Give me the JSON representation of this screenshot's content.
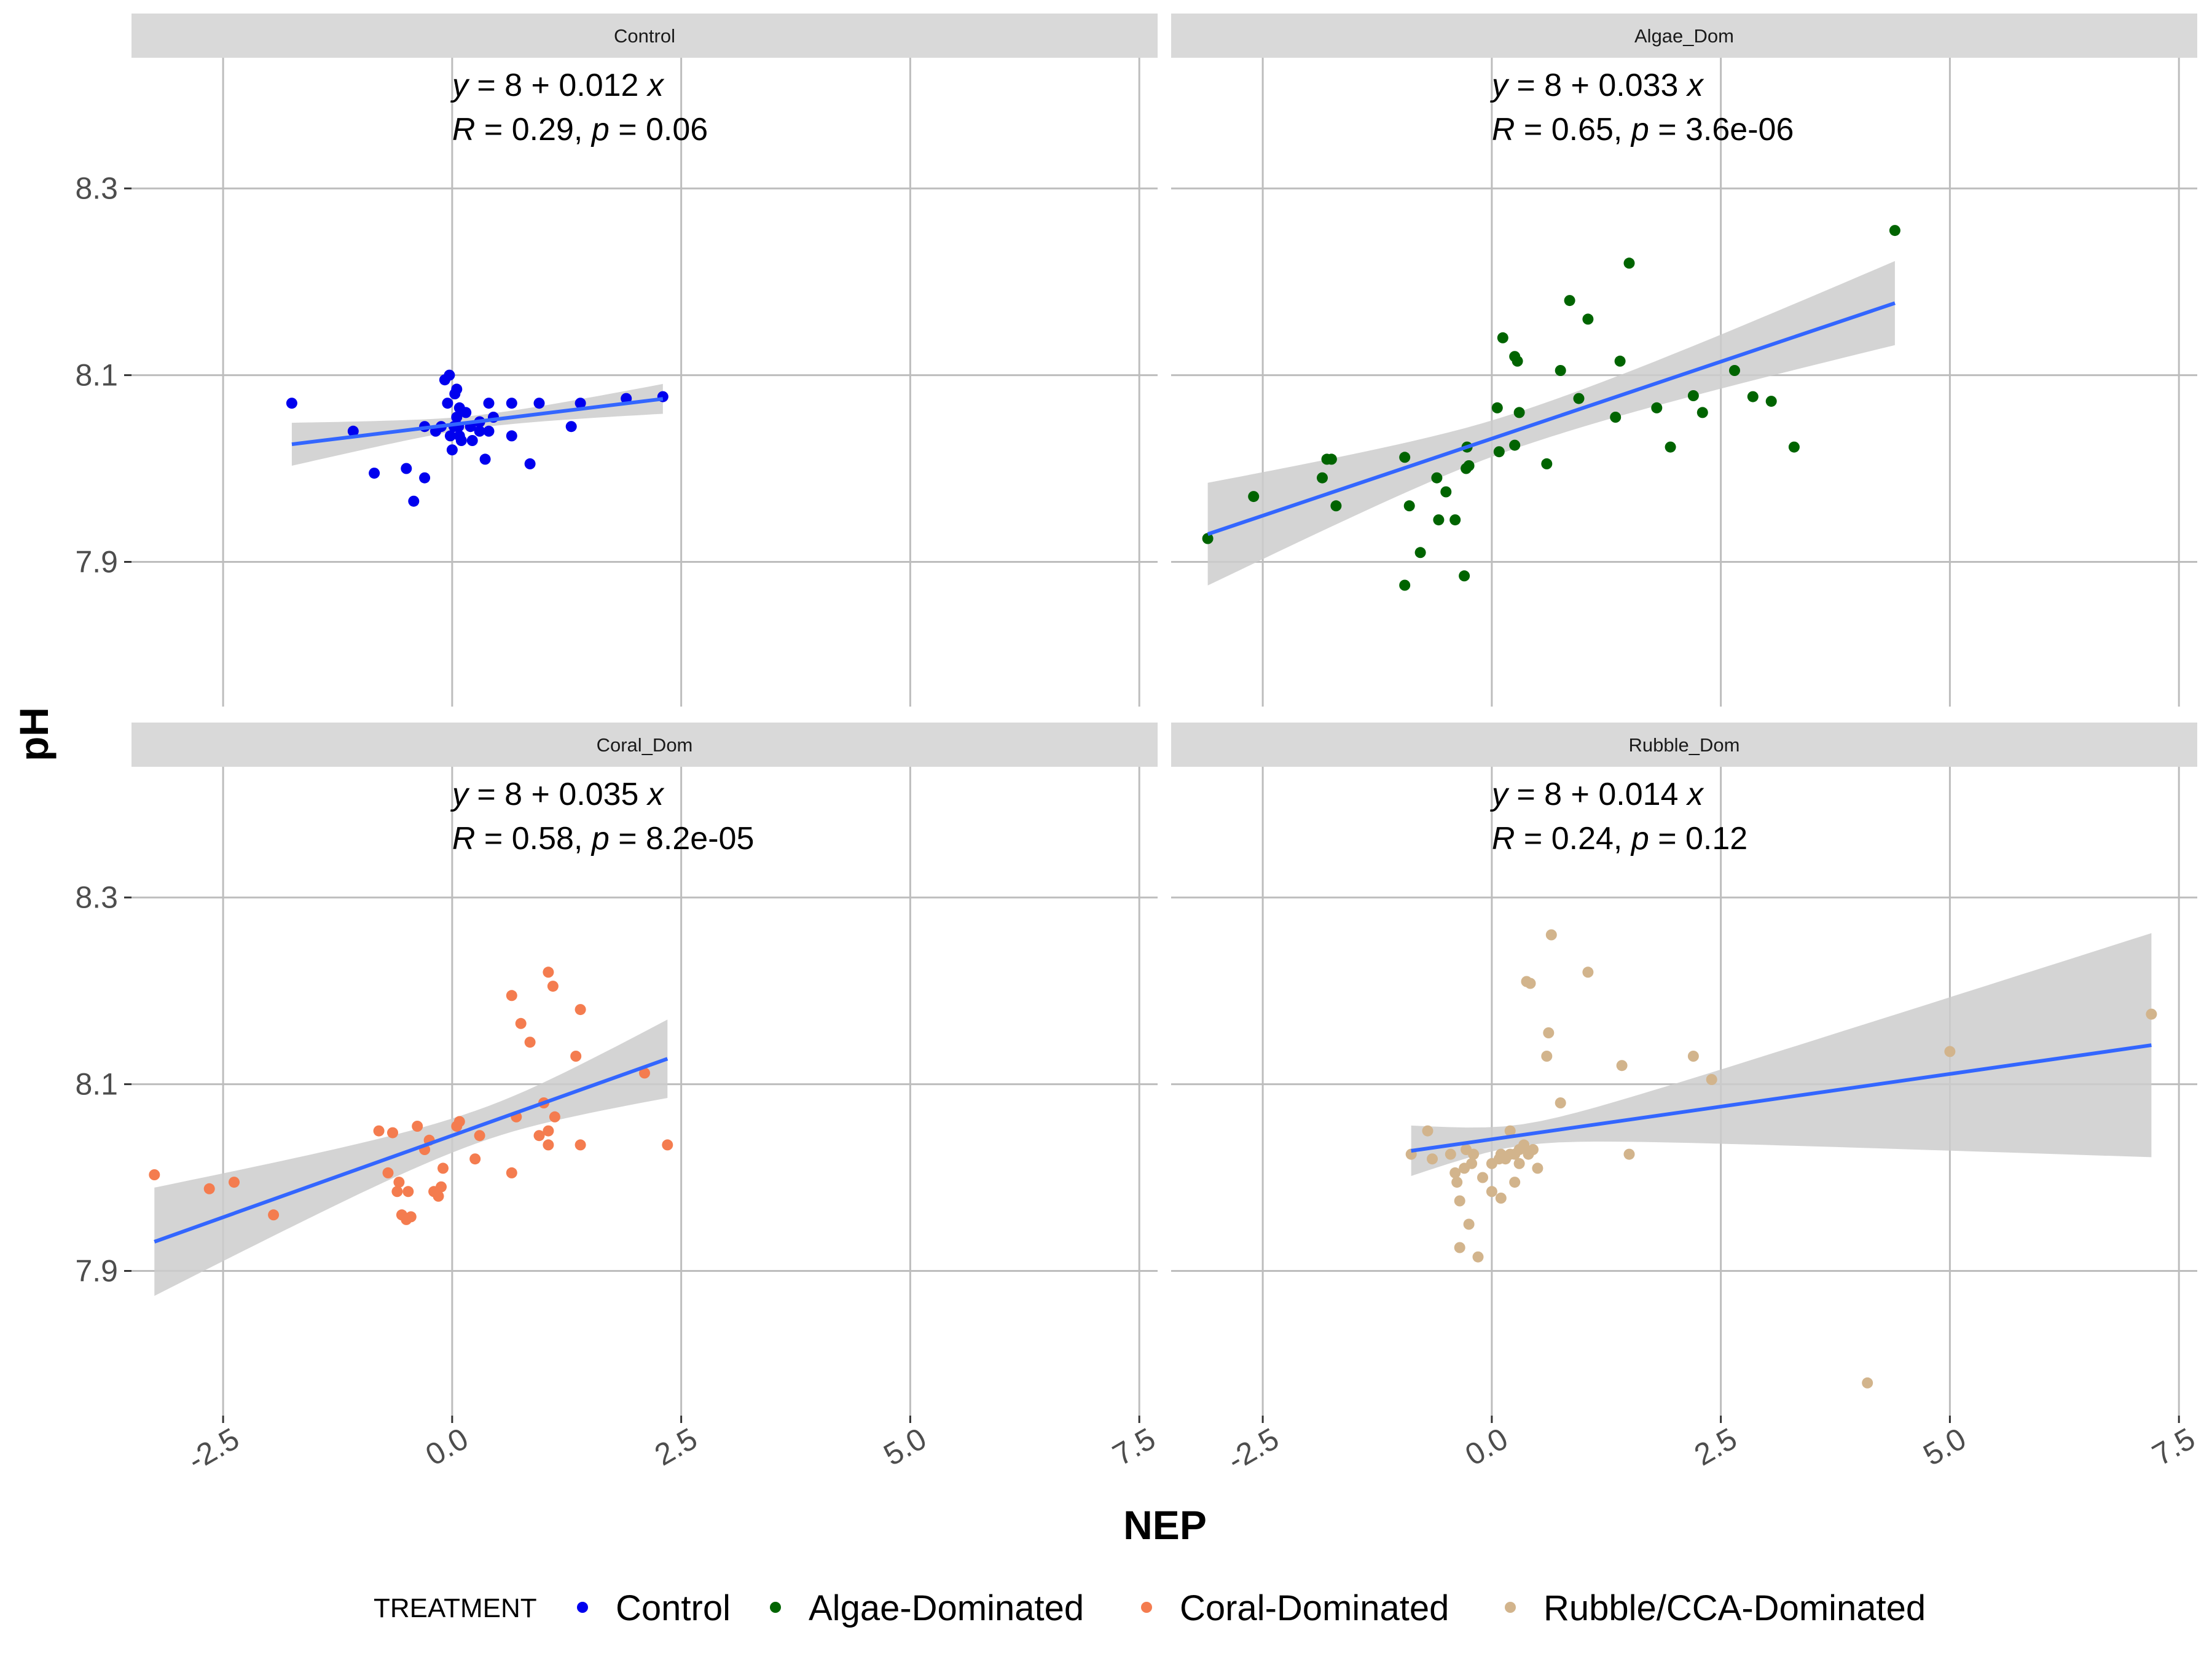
{
  "figure": {
    "x_label": "NEP",
    "y_label": "pH",
    "legend_title": "TREATMENT",
    "legend_position": "bottom",
    "x_ticks": [
      "-2.5",
      "0.0",
      "2.5",
      "5.0",
      "7.5"
    ],
    "y_ticks": [
      "7.9",
      "8.1",
      "8.3"
    ]
  },
  "colors": {
    "Control": "#0000ee",
    "Algae-Dominated": "#006400",
    "Coral-Dominated": "#f47c4f",
    "Rubble/CCA-Dominated": "#d2b48c",
    "regression_line": "#3366ff",
    "confidence_band": "#cccccc",
    "strip_background": "#d9d9d9",
    "grid": "#bdbdbd"
  },
  "legend": {
    "items": [
      {
        "label": "Control",
        "color": "#0000ee"
      },
      {
        "label": "Algae-Dominated",
        "color": "#006400"
      },
      {
        "label": "Coral-Dominated",
        "color": "#f47c4f"
      },
      {
        "label": "Rubble/CCA-Dominated",
        "color": "#d2b48c"
      }
    ]
  },
  "chart_data": {
    "type": "scatter",
    "xlim": [
      -3.5,
      7.7
    ],
    "ylim": [
      7.745,
      8.44
    ],
    "x_ticks": [
      -2.5,
      0.0,
      2.5,
      5.0,
      7.5
    ],
    "y_ticks": [
      7.9,
      8.1,
      8.3
    ],
    "grid": true,
    "panels": [
      {
        "strip": "Control",
        "series": "Control",
        "equation": {
          "lhs": "y",
          "eq": "=",
          "intercept": "8",
          "plus": "+",
          "slope": "0.012",
          "var": "x"
        },
        "stats": {
          "r_sym": "R",
          "r_val": "0.29",
          "p_sym": "p",
          "p_val": "0.06"
        },
        "fit": {
          "intercept": 8.047,
          "slope": 0.012,
          "x_range": [
            -1.75,
            2.3
          ],
          "se": [
            0.023,
            0.016
          ]
        },
        "points": [
          [
            -1.75,
            8.07
          ],
          [
            -1.08,
            8.04
          ],
          [
            -0.85,
            7.995
          ],
          [
            -0.5,
            8.0
          ],
          [
            -0.42,
            7.965
          ],
          [
            -0.3,
            7.99
          ],
          [
            -0.3,
            8.045
          ],
          [
            -0.18,
            8.04
          ],
          [
            -0.12,
            8.045
          ],
          [
            -0.08,
            8.095
          ],
          [
            -0.05,
            8.07
          ],
          [
            -0.03,
            8.1
          ],
          [
            -0.02,
            8.035
          ],
          [
            0.0,
            8.02
          ],
          [
            0.02,
            8.045
          ],
          [
            0.03,
            8.08
          ],
          [
            0.05,
            8.085
          ],
          [
            0.05,
            8.055
          ],
          [
            0.07,
            8.045
          ],
          [
            0.08,
            8.065
          ],
          [
            0.08,
            8.035
          ],
          [
            0.1,
            8.03
          ],
          [
            0.15,
            8.06
          ],
          [
            0.2,
            8.045
          ],
          [
            0.22,
            8.03
          ],
          [
            0.3,
            8.05
          ],
          [
            0.3,
            8.04
          ],
          [
            0.3,
            8.05
          ],
          [
            0.36,
            8.01
          ],
          [
            0.4,
            8.04
          ],
          [
            0.4,
            8.07
          ],
          [
            0.45,
            8.055
          ],
          [
            0.65,
            8.07
          ],
          [
            0.65,
            8.035
          ],
          [
            0.85,
            8.005
          ],
          [
            0.95,
            8.07
          ],
          [
            1.3,
            8.045
          ],
          [
            1.4,
            8.07
          ],
          [
            1.9,
            8.075
          ],
          [
            2.3,
            8.077
          ]
        ]
      },
      {
        "strip": "Algae_Dom",
        "series": "Algae-Dominated",
        "equation": {
          "lhs": "y",
          "eq": "=",
          "intercept": "8",
          "plus": "+",
          "slope": "0.033",
          "var": "x"
        },
        "stats": {
          "r_sym": "R",
          "r_val": "0.65",
          "p_sym": "p",
          "p_val": "3.6e-06"
        },
        "fit": {
          "intercept": 8.032,
          "slope": 0.033,
          "x_range": [
            -3.1,
            4.4
          ],
          "se": [
            0.055,
            0.045
          ]
        },
        "points": [
          [
            -3.1,
            7.925
          ],
          [
            -2.6,
            7.97
          ],
          [
            -1.85,
            7.99
          ],
          [
            -1.8,
            8.01
          ],
          [
            -1.75,
            8.01
          ],
          [
            -1.7,
            7.96
          ],
          [
            -0.95,
            7.875
          ],
          [
            -0.95,
            8.012
          ],
          [
            -0.9,
            7.96
          ],
          [
            -0.78,
            7.91
          ],
          [
            -0.6,
            7.99
          ],
          [
            -0.58,
            7.945
          ],
          [
            -0.5,
            7.975
          ],
          [
            -0.4,
            7.945
          ],
          [
            -0.3,
            7.885
          ],
          [
            -0.28,
            8.0
          ],
          [
            -0.27,
            8.023
          ],
          [
            -0.25,
            8.003
          ],
          [
            0.06,
            8.065
          ],
          [
            0.08,
            8.018
          ],
          [
            0.12,
            8.14
          ],
          [
            0.25,
            8.12
          ],
          [
            0.25,
            8.025
          ],
          [
            0.28,
            8.115
          ],
          [
            0.3,
            8.06
          ],
          [
            0.6,
            8.005
          ],
          [
            0.75,
            8.105
          ],
          [
            0.85,
            8.18
          ],
          [
            0.95,
            8.075
          ],
          [
            1.05,
            8.16
          ],
          [
            1.35,
            8.055
          ],
          [
            1.4,
            8.115
          ],
          [
            1.5,
            8.22
          ],
          [
            1.8,
            8.065
          ],
          [
            1.95,
            8.023
          ],
          [
            2.2,
            8.078
          ],
          [
            2.3,
            8.06
          ],
          [
            2.65,
            8.105
          ],
          [
            2.85,
            8.077
          ],
          [
            3.05,
            8.072
          ],
          [
            3.3,
            8.023
          ],
          [
            4.4,
            8.255
          ]
        ]
      },
      {
        "strip": "Coral_Dom",
        "series": "Coral-Dominated",
        "equation": {
          "lhs": "y",
          "eq": "=",
          "intercept": "8",
          "plus": "+",
          "slope": "0.035",
          "var": "x"
        },
        "stats": {
          "r_sym": "R",
          "r_val": "0.58",
          "p_sym": "p",
          "p_val": "8.2e-05"
        },
        "fit": {
          "intercept": 8.045,
          "slope": 0.035,
          "x_range": [
            -3.25,
            2.35
          ],
          "se": [
            0.058,
            0.042
          ]
        },
        "points": [
          [
            -3.25,
            8.003
          ],
          [
            -2.65,
            7.988
          ],
          [
            -2.38,
            7.995
          ],
          [
            -1.95,
            7.96
          ],
          [
            -0.8,
            8.05
          ],
          [
            -0.7,
            8.005
          ],
          [
            -0.65,
            8.048
          ],
          [
            -0.6,
            7.985
          ],
          [
            -0.58,
            7.995
          ],
          [
            -0.55,
            7.96
          ],
          [
            -0.5,
            7.955
          ],
          [
            -0.48,
            7.985
          ],
          [
            -0.45,
            7.958
          ],
          [
            -0.38,
            8.055
          ],
          [
            -0.3,
            8.03
          ],
          [
            -0.25,
            8.04
          ],
          [
            -0.2,
            7.985
          ],
          [
            -0.15,
            7.98
          ],
          [
            -0.12,
            7.99
          ],
          [
            -0.1,
            8.01
          ],
          [
            0.05,
            8.055
          ],
          [
            0.08,
            8.06
          ],
          [
            0.25,
            8.02
          ],
          [
            0.3,
            8.045
          ],
          [
            0.65,
            8.195
          ],
          [
            0.65,
            8.005
          ],
          [
            0.7,
            8.065
          ],
          [
            0.75,
            8.165
          ],
          [
            0.85,
            8.145
          ],
          [
            0.95,
            8.045
          ],
          [
            1.0,
            8.08
          ],
          [
            1.05,
            8.22
          ],
          [
            1.05,
            8.05
          ],
          [
            1.05,
            8.035
          ],
          [
            1.1,
            8.205
          ],
          [
            1.12,
            8.065
          ],
          [
            1.35,
            8.13
          ],
          [
            1.4,
            8.18
          ],
          [
            1.4,
            8.035
          ],
          [
            2.1,
            8.112
          ],
          [
            2.35,
            8.035
          ]
        ]
      },
      {
        "strip": "Rubble_Dom",
        "series": "Rubble/CCA-Dominated",
        "equation": {
          "lhs": "y",
          "eq": "=",
          "intercept": "8",
          "plus": "+",
          "slope": "0.014",
          "var": "x"
        },
        "stats": {
          "r_sym": "R",
          "r_val": "0.24",
          "p_sym": "p",
          "p_val": "0.12"
        },
        "fit": {
          "intercept": 8.041,
          "slope": 0.014,
          "x_range": [
            -0.88,
            7.2
          ],
          "se": [
            0.027,
            0.12
          ]
        },
        "points": [
          [
            -0.88,
            8.025
          ],
          [
            -0.7,
            8.05
          ],
          [
            -0.65,
            8.02
          ],
          [
            -0.45,
            8.025
          ],
          [
            -0.4,
            8.005
          ],
          [
            -0.38,
            7.995
          ],
          [
            -0.35,
            7.975
          ],
          [
            -0.35,
            7.925
          ],
          [
            -0.3,
            8.01
          ],
          [
            -0.28,
            8.03
          ],
          [
            -0.25,
            7.95
          ],
          [
            -0.22,
            8.015
          ],
          [
            -0.2,
            8.025
          ],
          [
            -0.15,
            7.915
          ],
          [
            -0.1,
            8.0
          ],
          [
            0.0,
            8.015
          ],
          [
            0.0,
            7.985
          ],
          [
            0.08,
            8.02
          ],
          [
            0.1,
            8.025
          ],
          [
            0.1,
            7.978
          ],
          [
            0.15,
            8.02
          ],
          [
            0.2,
            8.025
          ],
          [
            0.2,
            8.05
          ],
          [
            0.25,
            8.025
          ],
          [
            0.25,
            7.995
          ],
          [
            0.3,
            8.03
          ],
          [
            0.3,
            8.015
          ],
          [
            0.35,
            8.035
          ],
          [
            0.38,
            8.21
          ],
          [
            0.4,
            8.025
          ],
          [
            0.42,
            8.208
          ],
          [
            0.45,
            8.03
          ],
          [
            0.5,
            8.01
          ],
          [
            0.6,
            8.13
          ],
          [
            0.62,
            8.155
          ],
          [
            0.65,
            8.26
          ],
          [
            0.75,
            8.08
          ],
          [
            1.05,
            8.22
          ],
          [
            1.42,
            8.12
          ],
          [
            1.5,
            8.025
          ],
          [
            2.2,
            8.13
          ],
          [
            2.4,
            8.105
          ],
          [
            4.1,
            7.78
          ],
          [
            5.0,
            8.135
          ],
          [
            7.2,
            8.175
          ]
        ]
      }
    ]
  }
}
